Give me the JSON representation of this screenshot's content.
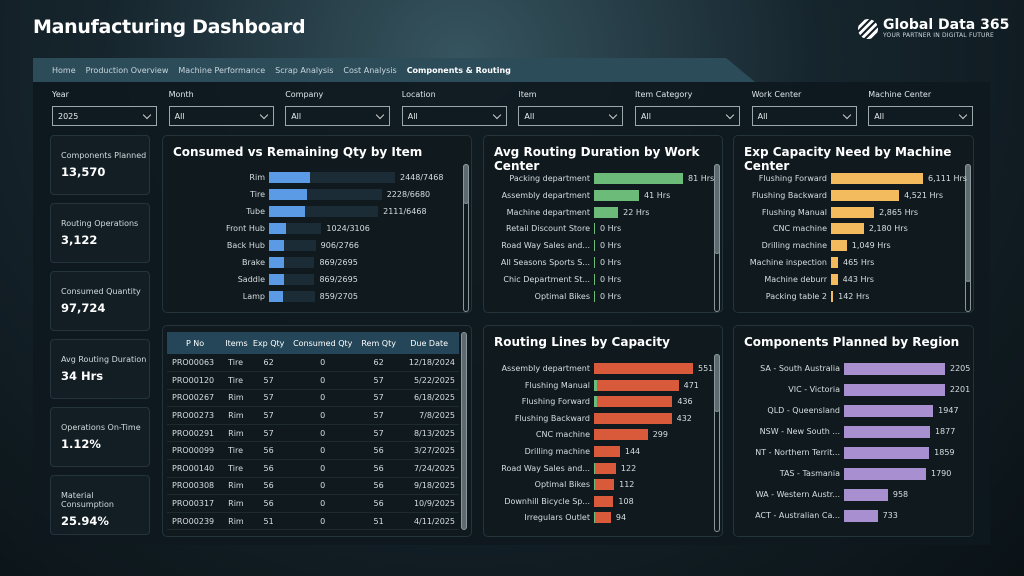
{
  "header": {
    "title": "Manufacturing Dashboard",
    "logo_name": "Global Data 365",
    "logo_tagline": "YOUR PARTNER IN DIGITAL FUTURE"
  },
  "nav": [
    {
      "label": "Home"
    },
    {
      "label": "Production Overview"
    },
    {
      "label": "Machine Performance"
    },
    {
      "label": "Scrap Analysis"
    },
    {
      "label": "Cost Analysis"
    },
    {
      "label": "Components & Routing",
      "active": true
    }
  ],
  "filters": [
    {
      "label": "Year",
      "value": "2025"
    },
    {
      "label": "Month",
      "value": "All"
    },
    {
      "label": "Company",
      "value": "All"
    },
    {
      "label": "Location",
      "value": "All"
    },
    {
      "label": "Item",
      "value": "All"
    },
    {
      "label": "Item Category",
      "value": "All"
    },
    {
      "label": "Work Center",
      "value": "All"
    },
    {
      "label": "Machine Center",
      "value": "All"
    }
  ],
  "kpis": [
    {
      "label": "Components Planned",
      "value": "13,570"
    },
    {
      "label": "Routing Operations",
      "value": "3,122"
    },
    {
      "label": "Consumed Quantity",
      "value": "97,724"
    },
    {
      "label": "Avg Routing Duration",
      "value": "34 Hrs"
    },
    {
      "label": "Operations On-Time",
      "value": "1.12%"
    },
    {
      "label": "Material Consumption",
      "value": "25.94%"
    }
  ],
  "colors": {
    "consumed": "#5b9be6",
    "track": "#1c2c36",
    "green": "#6dbb78",
    "orange": "#f3bb5e",
    "red": "#d85a3b",
    "purple": "#a890d0"
  },
  "chart_data": [
    {
      "type": "bar",
      "title": "Consumed vs Remaining Qty by Item",
      "categories": [
        "Rim",
        "Tire",
        "Tube",
        "Front Hub",
        "Back Hub",
        "Brake",
        "Saddle",
        "Lamp"
      ],
      "consumed": [
        2448,
        2228,
        2111,
        1024,
        906,
        869,
        869,
        859
      ],
      "total": [
        7468,
        6680,
        6468,
        3106,
        2766,
        2695,
        2695,
        2705
      ],
      "labels": [
        "2448/7468",
        "2228/6680",
        "2111/6468",
        "1024/3106",
        "906/2766",
        "869/2695",
        "869/2695",
        "859/2705"
      ]
    },
    {
      "type": "bar",
      "title": "Avg Routing Duration by Work Center",
      "categories": [
        "Packing department",
        "Assembly department",
        "Machine department",
        "Retail Discount Store",
        "Road Way Sales and...",
        "All Seasons Sports S...",
        "Chic Department St...",
        "Optimal Bikes"
      ],
      "values": [
        81,
        41,
        22,
        0,
        0,
        0,
        0,
        0
      ],
      "labels": [
        "81 Hrs",
        "41 Hrs",
        "22 Hrs",
        "0 Hrs",
        "0 Hrs",
        "0 Hrs",
        "0 Hrs",
        "0 Hrs"
      ]
    },
    {
      "type": "bar",
      "title": "Exp Capacity Need by Machine Center",
      "categories": [
        "Flushing Forward",
        "Flushing Backward",
        "Flushing Manual",
        "CNC machine",
        "Drilling machine",
        "Machine inspection",
        "Machine deburr",
        "Packing table 2"
      ],
      "values": [
        6111,
        4521,
        2865,
        2180,
        1049,
        465,
        443,
        142
      ],
      "labels": [
        "6,111 Hrs",
        "4,521 Hrs",
        "2,865 Hrs",
        "2,180 Hrs",
        "1,049 Hrs",
        "465 Hrs",
        "443 Hrs",
        "142 Hrs"
      ]
    },
    {
      "type": "bar",
      "title": "Routing Lines by Capacity",
      "categories": [
        "Assembly department",
        "Flushing Manual",
        "Flushing Forward",
        "Flushing Backward",
        "CNC machine",
        "Drilling machine",
        "Road Way Sales and...",
        "Optimal Bikes",
        "Downhill Bicycle Sp...",
        "Irregulars Outlet"
      ],
      "values": [
        551,
        471,
        436,
        432,
        299,
        144,
        122,
        112,
        108,
        94
      ],
      "green_portion": [
        0,
        18,
        15,
        0,
        0,
        0,
        2,
        2,
        0,
        2
      ],
      "labels": [
        "551",
        "471",
        "436",
        "432",
        "299",
        "144",
        "122",
        "112",
        "108",
        "94"
      ]
    },
    {
      "type": "bar",
      "title": "Components Planned by Region",
      "categories": [
        "SA - South Australia",
        "VIC - Victoria",
        "QLD - Queensland",
        "NSW - New South ...",
        "NT - Northern Territ...",
        "TAS - Tasmania",
        "WA - Western Austr...",
        "ACT - Australian Ca..."
      ],
      "values": [
        2205,
        2201,
        1947,
        1877,
        1859,
        1790,
        958,
        733
      ],
      "labels": [
        "2205",
        "2201",
        "1947",
        "1877",
        "1859",
        "1790",
        "958",
        "733"
      ]
    }
  ],
  "table": {
    "columns": [
      "P No",
      "Items",
      "Exp Qty",
      "Consumed Qty",
      "Rem Qty",
      "Due Date"
    ],
    "rows": [
      [
        "PRO00063",
        "Tire",
        "62",
        "0",
        "62",
        "12/18/2024"
      ],
      [
        "PRO00120",
        "Tire",
        "57",
        "0",
        "57",
        "5/22/2025"
      ],
      [
        "PRO00267",
        "Rim",
        "57",
        "0",
        "57",
        "6/18/2025"
      ],
      [
        "PRO00273",
        "Rim",
        "57",
        "0",
        "57",
        "7/8/2025"
      ],
      [
        "PRO00291",
        "Rim",
        "57",
        "0",
        "57",
        "8/13/2025"
      ],
      [
        "PRO00099",
        "Tire",
        "56",
        "0",
        "56",
        "3/27/2025"
      ],
      [
        "PRO00140",
        "Tire",
        "56",
        "0",
        "56",
        "7/24/2025"
      ],
      [
        "PRO00308",
        "Rim",
        "56",
        "0",
        "56",
        "9/18/2025"
      ],
      [
        "PRO00317",
        "Rim",
        "56",
        "0",
        "56",
        "10/9/2025"
      ],
      [
        "PRO00239",
        "Rim",
        "51",
        "0",
        "51",
        "4/11/2025"
      ]
    ]
  }
}
